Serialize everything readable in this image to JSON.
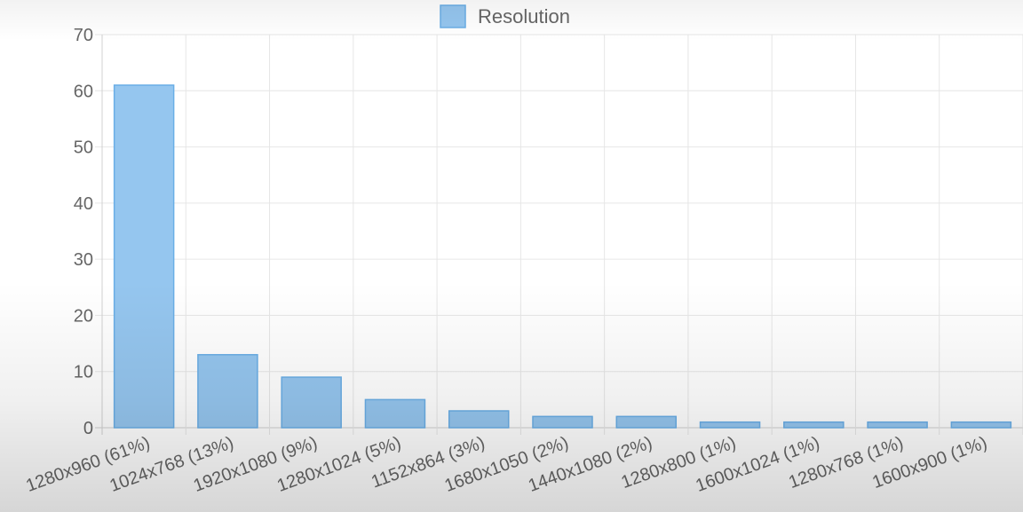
{
  "chart_data": {
    "type": "bar",
    "title": "",
    "xlabel": "",
    "ylabel": "",
    "ylim": [
      0,
      70
    ],
    "yticks": [
      0,
      10,
      20,
      30,
      40,
      50,
      60,
      70
    ],
    "grid": true,
    "legend_position": "top-center",
    "categories": [
      "1280x960 (61%)",
      "1024x768 (13%)",
      "1920x1080 (9%)",
      "1280x1024 (5%)",
      "1152x864 (3%)",
      "1680x1050 (2%)",
      "1440x1080 (2%)",
      "1280x800 (1%)",
      "1600x1024 (1%)",
      "1280x768 (1%)",
      "1600x900 (1%)"
    ],
    "series": [
      {
        "name": "Resolution",
        "values": [
          61,
          13,
          9,
          5,
          3,
          2,
          2,
          1,
          1,
          1,
          1
        ],
        "fill_color": "#95c6ef",
        "border_color": "#6aaee6"
      }
    ],
    "colors": {
      "grid": "#e6e6e6",
      "axis": "#d0d0d0",
      "tick_text": "#666666"
    }
  }
}
